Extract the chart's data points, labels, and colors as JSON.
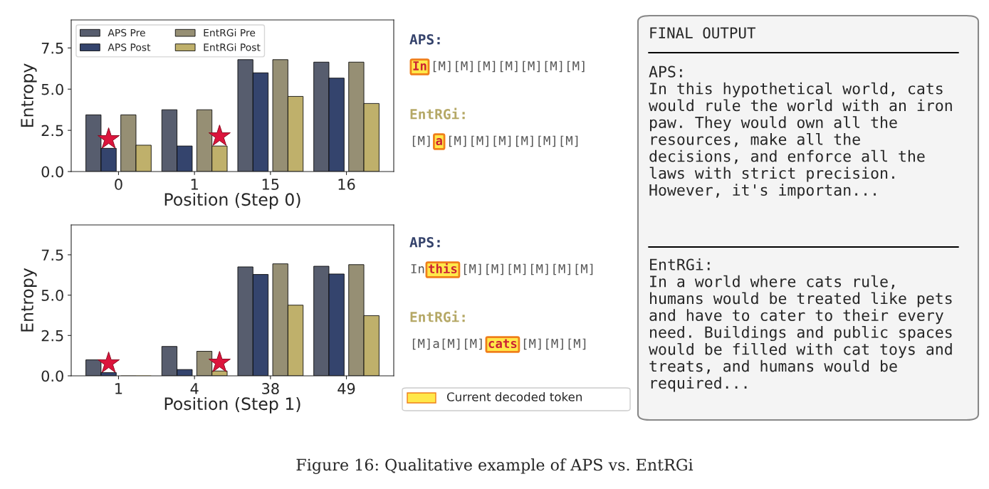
{
  "chart_data": [
    {
      "type": "bar",
      "xlabel": "Position (Step 0)",
      "ylabel": "Entropy",
      "categories": [
        "0",
        "1",
        "15",
        "16"
      ],
      "ylim": [
        0,
        9.2
      ],
      "yticks": [
        {
          "value": 0,
          "label": "0.0"
        },
        {
          "value": 2.5,
          "label": "2.5"
        },
        {
          "value": 5,
          "label": "5.0"
        },
        {
          "value": 7.5,
          "label": "7.5"
        }
      ],
      "grid": false,
      "legend": "top left",
      "series": [
        {
          "name": "APS Pre",
          "color": "#575d6e",
          "values": [
            3.44,
            3.75,
            6.79,
            6.64
          ]
        },
        {
          "name": "APS Post",
          "color": "#34446d",
          "values": [
            1.41,
            1.55,
            5.99,
            5.67
          ]
        },
        {
          "type": "scatter",
          "color": "#dc143c",
          "marker": "star",
          "x": [
            "0",
            "1",
            "15",
            "16"
          ],
          "values": [
            1.97,
            null,
            null,
            null
          ]
        },
        {
          "name": "EntRGi Pre",
          "color": "#968f74",
          "values": [
            3.44,
            3.75,
            6.79,
            6.64
          ]
        },
        {
          "name": "EntRGi Post",
          "color": "#bfb06b",
          "values": [
            1.6,
            1.55,
            4.56,
            4.13
          ]
        },
        {
          "type": "scatter",
          "color": "#dc143c",
          "marker": "star",
          "x": [
            "0",
            "1",
            "15",
            "16"
          ],
          "values": [
            null,
            2.14,
            null,
            null
          ]
        }
      ]
    },
    {
      "type": "bar",
      "xlabel": "Position (Step 1)",
      "ylabel": "Entropy",
      "categories": [
        "1",
        "4",
        "38",
        "49"
      ],
      "ylim": [
        0,
        9.35
      ],
      "yticks": [
        {
          "value": 0,
          "label": "0.0"
        },
        {
          "value": 2.5,
          "label": "2.5"
        },
        {
          "value": 5,
          "label": "5.0"
        },
        {
          "value": 7.5,
          "label": "7.5"
        }
      ],
      "grid": false,
      "legend": false,
      "series": [
        {
          "color": "#575d6e",
          "values": [
            0.99,
            1.82,
            6.75,
            6.79
          ]
        },
        {
          "color": "#34446d",
          "values": [
            0.2,
            0.39,
            6.28,
            6.31
          ]
        },
        {
          "type": "scatter",
          "color": "#dc143c",
          "marker": "star",
          "x": [
            "1",
            "4",
            "38",
            "49"
          ],
          "values": [
            0.78,
            null,
            null,
            null
          ]
        },
        {
          "color": "#968f74",
          "values": [
            0.0,
            1.52,
            6.94,
            6.89
          ]
        },
        {
          "color": "#bfb06b",
          "values": [
            0.0,
            0.3,
            4.38,
            3.73
          ]
        },
        {
          "type": "scatter",
          "color": "#dc143c",
          "marker": "star",
          "x": [
            "1",
            "4",
            "38",
            "49"
          ],
          "values": [
            null,
            0.82,
            null,
            null
          ]
        }
      ]
    },
    {
      "type": "other",
      "color": "#ffe84a",
      "colors": [
        "#34426b",
        "#b5a866",
        "#34426b",
        "#b5a866"
      ],
      "annotations": [
        "APS:",
        null,
        "In",
        "[M][M][M][M][M][M][M]",
        "EntRGi:",
        "[M]",
        "a",
        "[M][M][M][M][M][M]",
        "APS:",
        "In",
        "this",
        "[M][M][M][M][M][M]",
        "EntRGi:",
        "[M]a[M][M]",
        "cats",
        "[M][M][M]",
        "Current decoded token"
      ]
    },
    {
      "type": "other",
      "title": "FINAL OUTPUT",
      "color": "#f4f4f4",
      "annotations": [
        "APS:\nIn this hypothetical world, cats\nwould rule the world with an iron\npaw. They would own all the\nresources, make all the\ndecisions, and enforce all the\nlaws with strict precision.\nHowever, it's importan...",
        "EntRGi:\nIn a world where cats rule,\nhumans would be treated like pets\nand have to cater to their every\nneed. Buildings and public spaces\nwould be filled with cat toys and\ntreats, and humans would be\nrequired...",
        "Figure 16: Qualitative example of APS vs. EntRGi"
      ]
    }
  ]
}
